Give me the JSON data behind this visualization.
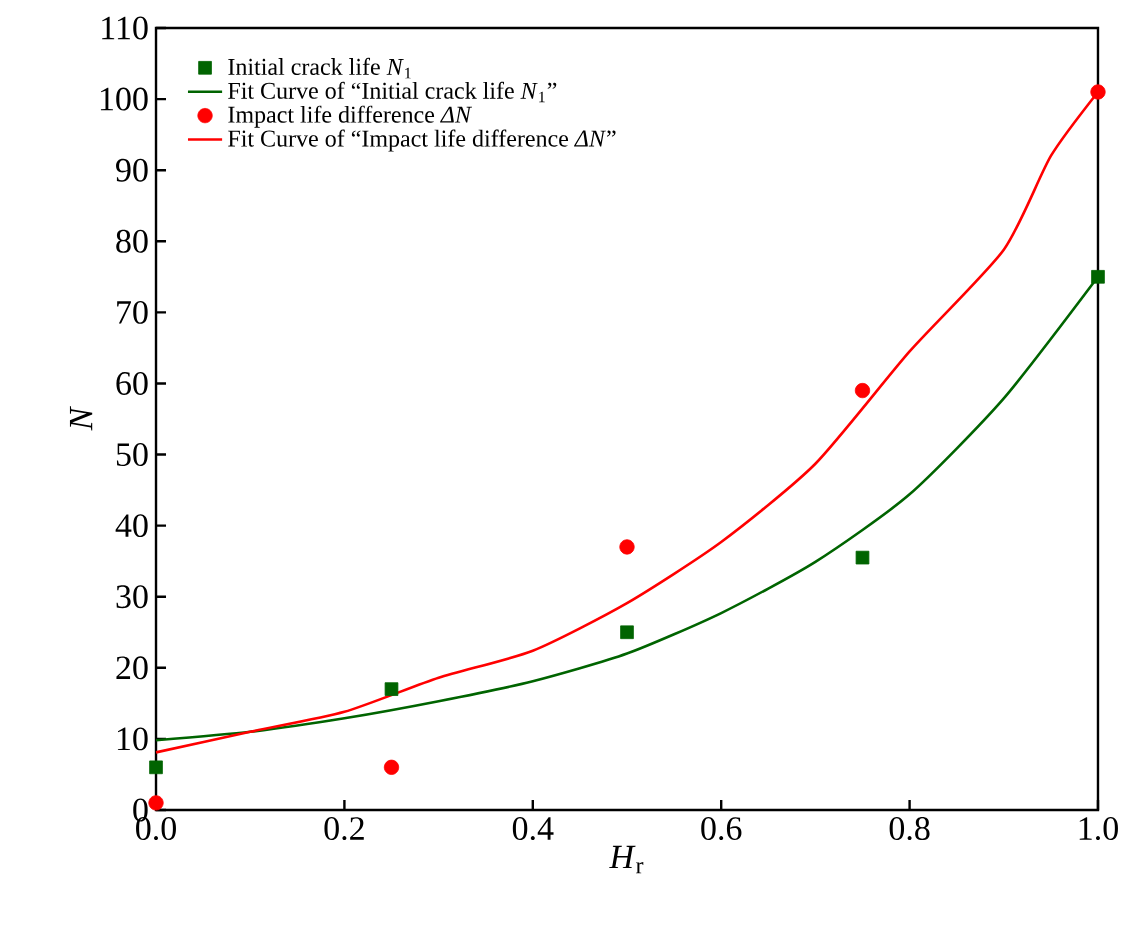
{
  "chart_data": {
    "type": "scatter",
    "xlabel": "*H*$_{r}$",
    "ylabel": "N",
    "xlim": [
      0,
      1
    ],
    "ylim": [
      0,
      110
    ],
    "xticks": [
      {
        "value": 0,
        "label": "0.0"
      },
      0.2,
      0.4,
      0.6,
      0.8,
      {
        "value": 1,
        "label": "1.0"
      }
    ],
    "yticks": [
      0,
      10,
      20,
      30,
      40,
      50,
      60,
      70,
      80,
      90,
      100,
      110
    ],
    "grid": false,
    "legend": "top left",
    "series": [
      {
        "name": "Initial crack life *N*$_{1}$",
        "marker": "square",
        "color": "#006400",
        "x": [
          0,
          0.25,
          0.5,
          0.75,
          1
        ],
        "values": [
          6,
          17,
          25,
          35.5,
          75
        ]
      },
      {
        "name": "Fit Curve of “Initial crack life *N*$_{1}$”",
        "type": "line",
        "marker": "none",
        "line_style": "solid",
        "color": "#006400",
        "x": [
          0,
          0.1,
          0.2,
          0.3,
          0.4,
          0.5,
          0.6,
          0.7,
          0.8,
          0.9,
          1
        ],
        "values": [
          9.8,
          11,
          12.9,
          15.3,
          18.1,
          22,
          27.7,
          34.9,
          44.4,
          57.9,
          75
        ]
      },
      {
        "name": "Impact life difference *ΔN*",
        "marker": "circle",
        "color": "#ff0000",
        "x": [
          0,
          0.25,
          0.5,
          0.75,
          1
        ],
        "values": [
          1,
          6,
          37,
          59,
          101
        ]
      },
      {
        "name": "Fit Curve of “Impact life difference *ΔN*”",
        "type": "line",
        "marker": "none",
        "line_style": "solid",
        "color": "#ff0000",
        "x": [
          0,
          0.1,
          0.2,
          0.3,
          0.4,
          0.5,
          0.6,
          0.7,
          0.8,
          0.9,
          0.95,
          1
        ],
        "values": [
          8.1,
          11,
          13.8,
          18.6,
          22.4,
          29.1,
          37.7,
          48.7,
          64.5,
          78.8,
          92,
          101
        ]
      }
    ]
  }
}
